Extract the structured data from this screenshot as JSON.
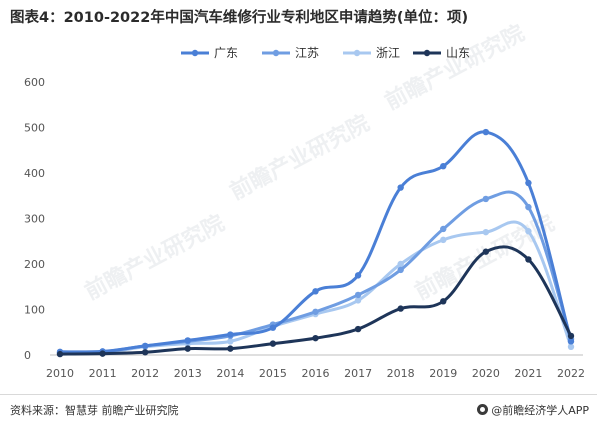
{
  "header": {
    "title": "图表4：2010-2022年中国汽车维修行业专利地区申请趋势(单位：项)"
  },
  "footer": {
    "source": "资料来源：智慧芽 前瞻产业研究院",
    "brand": "@前瞻经济学人APP"
  },
  "watermark": {
    "text": "前瞻产业研究院"
  },
  "chart_data": {
    "type": "line",
    "title": "图表4：2010-2022年中国汽车维修行业专利地区申请趋势(单位：项)",
    "xlabel": "",
    "ylabel": "",
    "x": [
      "2010",
      "2011",
      "2012",
      "2013",
      "2014",
      "2015",
      "2016",
      "2017",
      "2018",
      "2019",
      "2020",
      "2021",
      "2022"
    ],
    "ylim": [
      0,
      600
    ],
    "yticks": [
      0,
      100,
      200,
      300,
      400,
      500,
      600
    ],
    "grid": false,
    "legend": "top-center",
    "series": [
      {
        "name": "广东",
        "color": "#4a7fd6",
        "values": [
          7,
          8,
          20,
          32,
          45,
          60,
          140,
          175,
          368,
          415,
          490,
          378,
          30
        ]
      },
      {
        "name": "江苏",
        "color": "#6f9de2",
        "values": [
          5,
          7,
          20,
          30,
          42,
          67,
          95,
          132,
          187,
          277,
          343,
          325,
          35
        ]
      },
      {
        "name": "浙江",
        "color": "#a8c8f0",
        "values": [
          4,
          5,
          18,
          25,
          30,
          63,
          90,
          120,
          200,
          253,
          270,
          272,
          18
        ]
      },
      {
        "name": "山东",
        "color": "#1e3559",
        "values": [
          2,
          3,
          6,
          14,
          14,
          25,
          37,
          57,
          102,
          118,
          227,
          210,
          42
        ]
      }
    ]
  }
}
